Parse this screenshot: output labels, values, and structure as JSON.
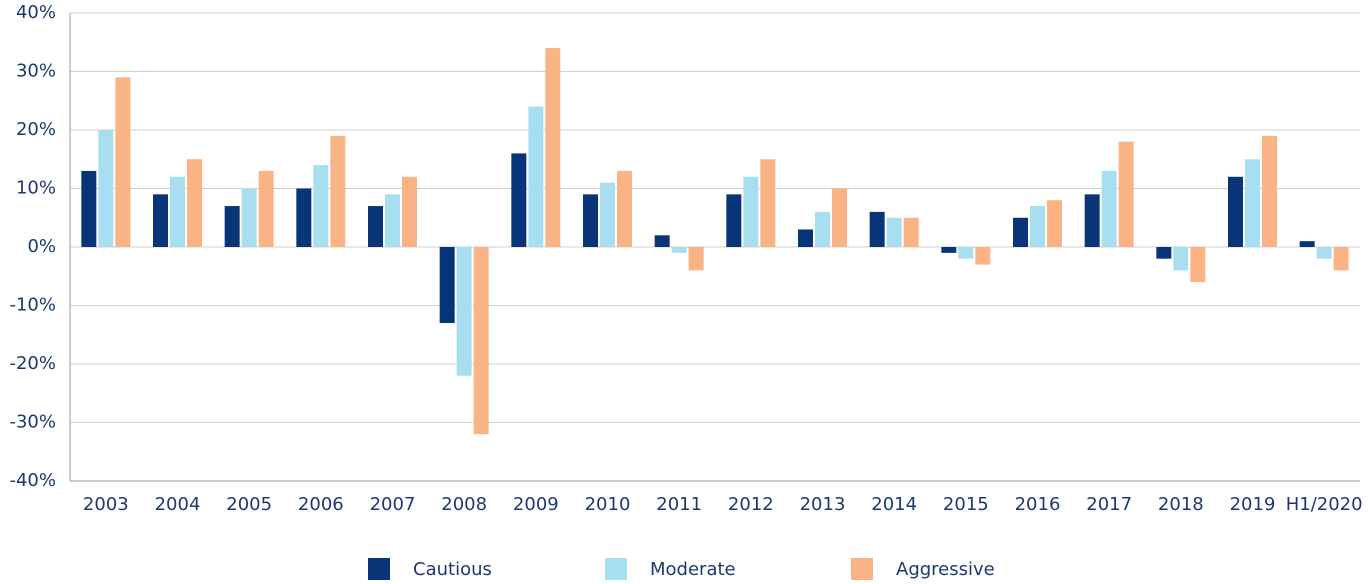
{
  "chart_data": {
    "type": "bar",
    "categories": [
      "2003",
      "2004",
      "2005",
      "2006",
      "2007",
      "2008",
      "2009",
      "2010",
      "2011",
      "2012",
      "2013",
      "2014",
      "2015",
      "2016",
      "2017",
      "2018",
      "2019",
      "H1/2020"
    ],
    "series": [
      {
        "name": "Cautious",
        "color": "#0a3478",
        "values": [
          13,
          9,
          7,
          10,
          7,
          -13,
          16,
          9,
          2,
          9,
          3,
          6,
          -1,
          5,
          9,
          -2,
          12,
          1
        ]
      },
      {
        "name": "Moderate",
        "color": "#a8dff0",
        "values": [
          20,
          12,
          10,
          14,
          9,
          -22,
          24,
          11,
          -1,
          12,
          6,
          5,
          -2,
          7,
          13,
          -4,
          15,
          -2
        ]
      },
      {
        "name": "Aggressive",
        "color": "#f9b384",
        "values": [
          29,
          15,
          13,
          19,
          12,
          -32,
          34,
          13,
          -4,
          15,
          10,
          5,
          -3,
          8,
          18,
          -6,
          19,
          -4
        ]
      }
    ],
    "ylim": [
      -40,
      40
    ],
    "yticks": [
      {
        "value": -40,
        "label": "-40%"
      },
      {
        "value": -30,
        "label": "-30%"
      },
      {
        "value": -20,
        "label": "-20%"
      },
      {
        "value": -10,
        "label": "-10%"
      },
      {
        "value": 0,
        "label": "0%"
      },
      {
        "value": 10,
        "label": "10%"
      },
      {
        "value": 20,
        "label": "20%"
      },
      {
        "value": 30,
        "label": "30%"
      },
      {
        "value": 40,
        "label": "40%"
      }
    ],
    "grid": true,
    "legend": "bottom"
  }
}
